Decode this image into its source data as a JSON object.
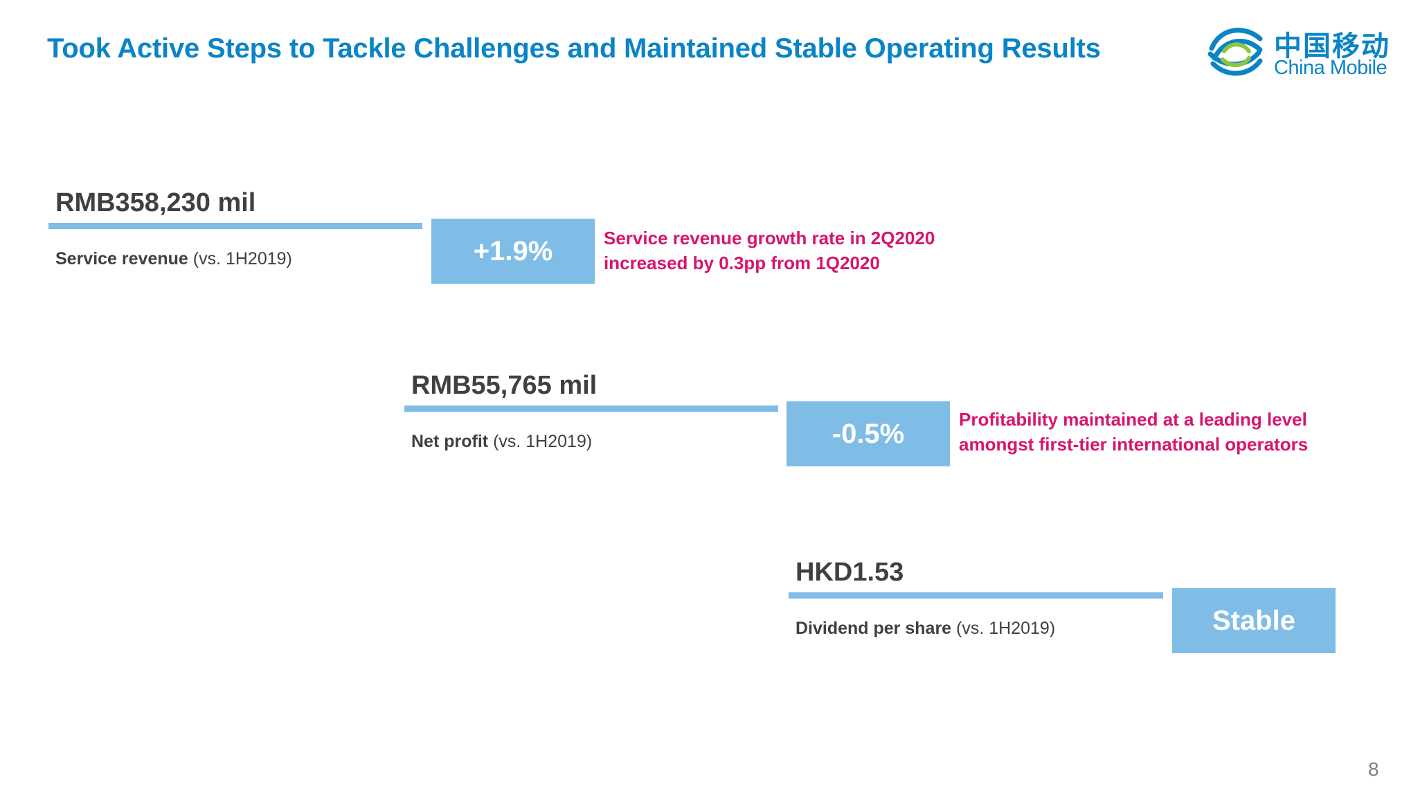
{
  "slide": {
    "title": "Took Active Steps to Tackle Challenges and Maintained Stable Operating Results",
    "page_number": "8"
  },
  "logo": {
    "cn_text": "中国移动",
    "en_text": "China Mobile",
    "colors": {
      "blue": "#0a84c6",
      "green": "#8cc63f"
    }
  },
  "metrics": [
    {
      "value": "RMB358,230 mil",
      "label": "Service revenue",
      "comparison": "(vs. 1H2019)",
      "change": "+1.9%",
      "note_lines": [
        "Service revenue growth rate in 2Q2020",
        "increased by 0.3pp from 1Q2020"
      ]
    },
    {
      "value": "RMB55,765 mil",
      "label": "Net profit",
      "comparison": "(vs. 1H2019)",
      "change": "-0.5%",
      "note_lines": [
        "Profitability maintained at a leading level",
        "amongst first-tier international operators"
      ]
    },
    {
      "value": "HKD1.53",
      "label": "Dividend per share",
      "comparison": "(vs. 1H2019)",
      "change": "Stable",
      "note_lines": []
    }
  ],
  "colors": {
    "title": "#0a84c6",
    "bar": "#7fbde6",
    "highlight": "#d6156e",
    "text": "#404040"
  }
}
